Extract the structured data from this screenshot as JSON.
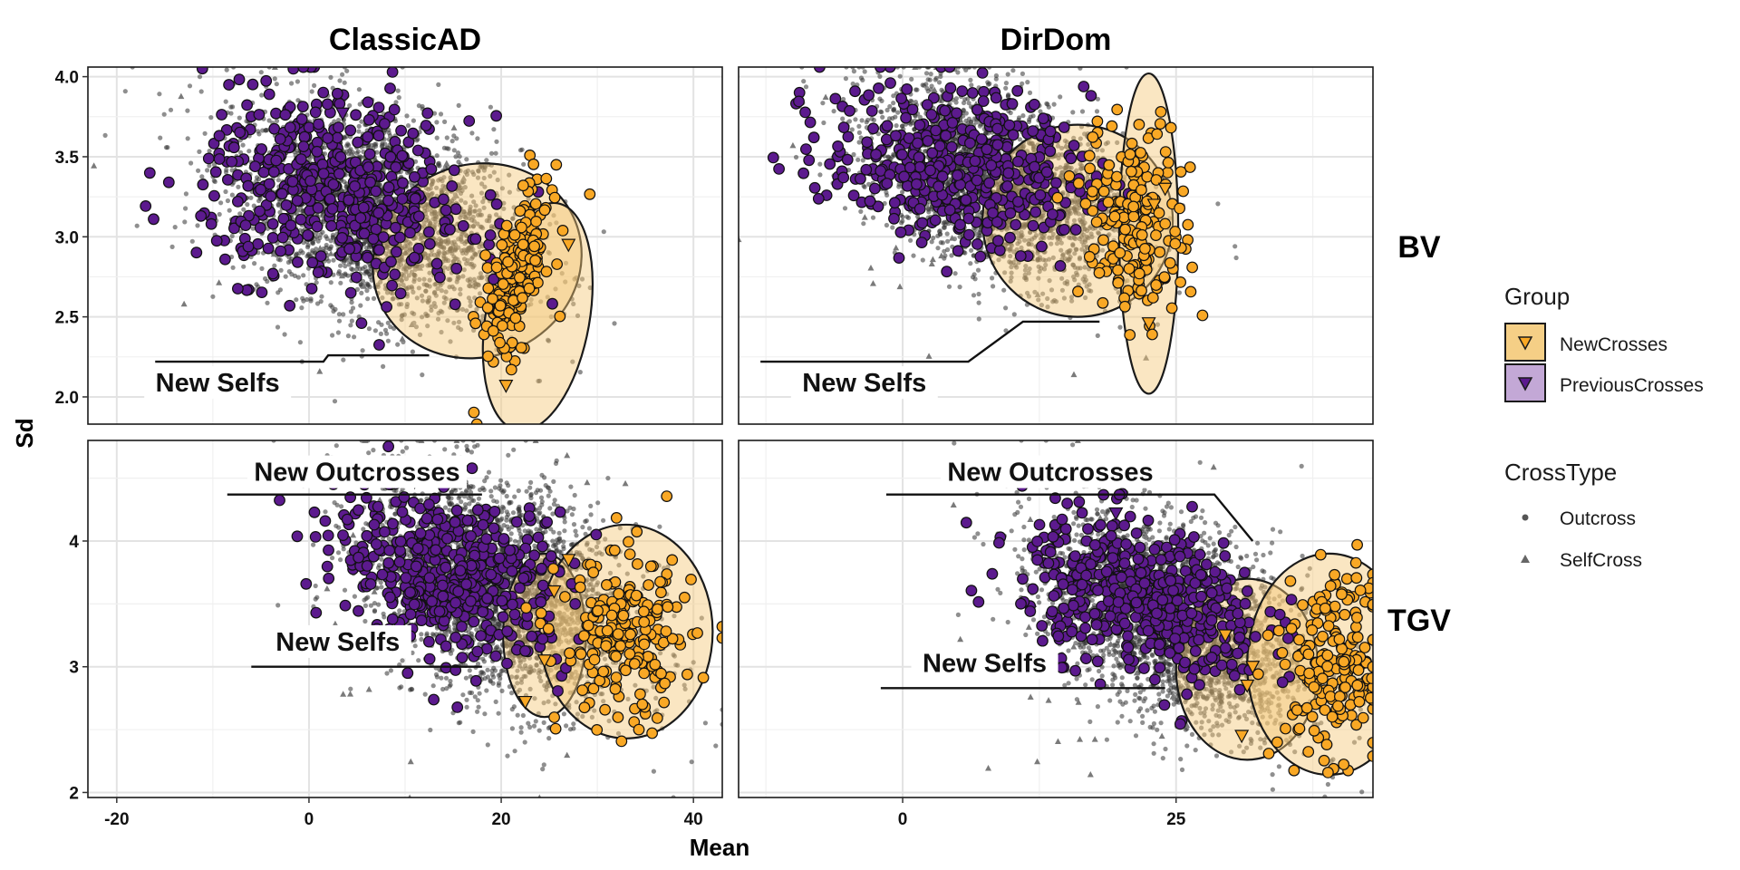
{
  "chart_data": {
    "type": "scatter",
    "xlabel": "Mean",
    "ylabel": "Sd",
    "facet_cols": [
      "ClassicAD",
      "DirDom"
    ],
    "facet_rows": [
      "BV",
      "TGV"
    ],
    "grid": true,
    "legend_position": "right",
    "legend": {
      "group_title": "Group",
      "group_entries": [
        {
          "label": "NewCrosses",
          "fill": "#f5cf86",
          "point": "#f9a825"
        },
        {
          "label": "PreviousCrosses",
          "fill": "#c3a8d6",
          "point": "#5c1a8e"
        }
      ],
      "crosstype_title": "CrossType",
      "crosstype_entries": [
        {
          "label": "Outcross",
          "shape": "circle"
        },
        {
          "label": "SelfCross",
          "shape": "triangle"
        }
      ]
    },
    "colors": {
      "outcross": "#333333",
      "selfcross": "#7a7a7a",
      "new_crosses": "#f9a825",
      "previous_crosses": "#5c1a8e",
      "ellipse_fill": "#f3c878"
    },
    "panels": [
      {
        "col": "ClassicAD",
        "row": "BV",
        "xlim": [
          -23,
          43
        ],
        "ylim": [
          1.83,
          4.06
        ],
        "xticks": [
          -20,
          0,
          20,
          40
        ],
        "yticks": [
          2.0,
          2.5,
          3.0,
          3.5,
          4.0
        ],
        "ytick_labels": [
          "2.0",
          "2.5",
          "3.0",
          "3.5",
          "4.0"
        ],
        "cloud": {
          "cx": 7,
          "cy": 3.15,
          "sx": 7.5,
          "sy": 0.33,
          "rho": -0.35,
          "n": 2600
        },
        "previous_crosses": {
          "cx": 3,
          "cy": 3.28,
          "sx": 7,
          "sy": 0.3,
          "rho": -0.2,
          "n": 480
        },
        "new_crosses": {
          "cx": 21.5,
          "cy": 2.75,
          "sx": 1.8,
          "sy": 0.28,
          "rho": 0.6,
          "n": 200
        },
        "new_triangles": [
          [
            20.5,
            2.07
          ],
          [
            27,
            2.95
          ]
        ],
        "prev_triangles": [
          [
            3.5,
            3.77
          ]
        ],
        "ellipses": [
          {
            "cx": 17.5,
            "cy": 2.85,
            "rx": 11,
            "ry": 0.6,
            "angle": -22
          },
          {
            "cx": 23.8,
            "cy": 2.5,
            "rx": 5.4,
            "ry": 0.72,
            "angle": 10
          }
        ],
        "annotations": [
          {
            "text": "New Selfs",
            "tx": -9.5,
            "ty": 2.05,
            "line": [
              [
                -16,
                2.22
              ],
              [
                1.5,
                2.22
              ],
              [
                2,
                2.26
              ],
              [
                12.5,
                2.26
              ]
            ]
          }
        ]
      },
      {
        "col": "DirDom",
        "row": "BV",
        "xlim": [
          -15,
          43
        ],
        "ylim": [
          1.83,
          4.06
        ],
        "xticks": [
          0,
          25
        ],
        "yticks": [
          2.0,
          2.5,
          3.0,
          3.5,
          4.0
        ],
        "ytick_labels": [
          "2.0",
          "2.5",
          "3.0",
          "3.5",
          "4.0"
        ],
        "cloud": {
          "cx": 9,
          "cy": 3.33,
          "sx": 6,
          "sy": 0.3,
          "rho": -0.45,
          "n": 2600
        },
        "previous_crosses": {
          "cx": 5,
          "cy": 3.45,
          "sx": 6,
          "sy": 0.25,
          "rho": -0.2,
          "n": 440
        },
        "new_crosses": {
          "cx": 21.5,
          "cy": 3.1,
          "sx": 2.5,
          "sy": 0.3,
          "rho": -0.1,
          "n": 200
        },
        "new_triangles": [
          [
            22.5,
            2.46
          ],
          [
            24,
            3.3
          ],
          [
            23,
            3.2
          ]
        ],
        "prev_triangles": [],
        "ellipses": [
          {
            "cx": 16,
            "cy": 3.1,
            "rx": 8.7,
            "ry": 0.6,
            "angle": 0
          },
          {
            "cx": 22.5,
            "cy": 3.02,
            "rx": 2.7,
            "ry": 1.0,
            "angle": 0
          }
        ],
        "annotations": [
          {
            "text": "New Selfs",
            "tx": -3.5,
            "ty": 2.05,
            "line": [
              [
                -13,
                2.22
              ],
              [
                6,
                2.22
              ],
              [
                11,
                2.47
              ],
              [
                18,
                2.47
              ]
            ]
          }
        ]
      },
      {
        "col": "ClassicAD",
        "row": "TGV",
        "xlim": [
          -23,
          43
        ],
        "ylim": [
          1.96,
          4.8
        ],
        "xticks": [
          -20,
          0,
          20,
          40
        ],
        "yticks": [
          2,
          3,
          4
        ],
        "ytick_labels": [
          "2",
          "3",
          "4"
        ],
        "cloud": {
          "cx": 20,
          "cy": 3.6,
          "sx": 7,
          "sy": 0.45,
          "rho": -0.35,
          "n": 2800
        },
        "previous_crosses": {
          "cx": 15,
          "cy": 3.75,
          "sx": 6,
          "sy": 0.33,
          "rho": -0.3,
          "n": 500
        },
        "new_crosses": {
          "cx": 33,
          "cy": 3.2,
          "sx": 3.5,
          "sy": 0.35,
          "rho": 0,
          "n": 200
        },
        "new_triangles": [
          [
            22.5,
            2.72
          ],
          [
            24.5,
            3.05
          ],
          [
            25.5,
            3.6
          ],
          [
            27,
            3.85
          ]
        ],
        "prev_triangles": [
          [
            11,
            4.47
          ]
        ],
        "ellipses": [
          {
            "cx": 24.5,
            "cy": 3.25,
            "rx": 4.3,
            "ry": 0.65,
            "angle": 0
          },
          {
            "cx": 33,
            "cy": 3.28,
            "rx": 9,
            "ry": 0.85,
            "angle": 0
          }
        ],
        "annotations": [
          {
            "text": "New Outcrosses",
            "tx": 5,
            "ty": 4.5,
            "line": [
              [
                -8.5,
                4.37
              ],
              [
                18,
                4.37
              ]
            ]
          },
          {
            "text": "New Selfs",
            "tx": 3,
            "ty": 3.15,
            "line": [
              [
                -6,
                3.0
              ],
              [
                18,
                3.0
              ]
            ]
          }
        ]
      },
      {
        "col": "DirDom",
        "row": "TGV",
        "xlim": [
          -15,
          43
        ],
        "ylim": [
          1.96,
          4.8
        ],
        "xticks": [
          0,
          25
        ],
        "yticks": [
          2,
          3,
          4
        ],
        "ytick_labels": [
          "2",
          "3",
          "4"
        ],
        "cloud": {
          "cx": 25,
          "cy": 3.35,
          "sx": 6,
          "sy": 0.42,
          "rho": -0.45,
          "n": 2800
        },
        "previous_crosses": {
          "cx": 22,
          "cy": 3.55,
          "sx": 5.5,
          "sy": 0.32,
          "rho": -0.35,
          "n": 500
        },
        "new_crosses": {
          "cx": 39.5,
          "cy": 3.0,
          "sx": 2.5,
          "sy": 0.35,
          "rho": 0,
          "n": 200
        },
        "new_triangles": [
          [
            31,
            2.45
          ],
          [
            31.5,
            2.85
          ],
          [
            32,
            3.0
          ],
          [
            29.5,
            3.25
          ]
        ],
        "prev_triangles": [
          [
            19.5,
            4.22
          ]
        ],
        "ellipses": [
          {
            "cx": 31.5,
            "cy": 2.98,
            "rx": 6.5,
            "ry": 0.72,
            "angle": 0
          },
          {
            "cx": 39,
            "cy": 3.02,
            "rx": 7.5,
            "ry": 0.88,
            "angle": 0
          }
        ],
        "annotations": [
          {
            "text": "New Outcrosses",
            "tx": 13.5,
            "ty": 4.5,
            "line": [
              [
                -1.5,
                4.37
              ],
              [
                28.5,
                4.37
              ],
              [
                32,
                4.0
              ]
            ]
          },
          {
            "text": "New Selfs",
            "tx": 7.5,
            "ty": 2.98,
            "line": [
              [
                -2,
                2.83
              ],
              [
                24,
                2.83
              ]
            ]
          }
        ]
      }
    ]
  }
}
